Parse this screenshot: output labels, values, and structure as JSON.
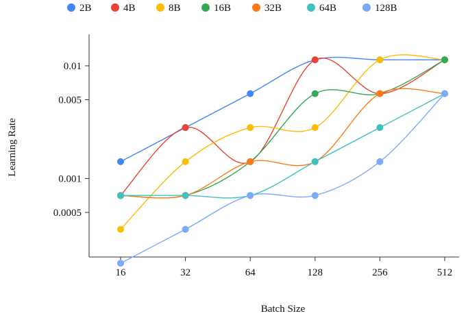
{
  "chart_data": {
    "type": "line",
    "xlabel": "Batch Size",
    "ylabel": "Learning Rate",
    "x_categories": [
      "16",
      "32",
      "64",
      "128",
      "256",
      "512"
    ],
    "y_scale": "log2",
    "yticks": [
      {
        "value": 0.01,
        "label": "0.01"
      },
      {
        "value": 0.005,
        "label": "0.005"
      },
      {
        "value": 0.001,
        "label": "0.001"
      },
      {
        "value": 0.0005,
        "label": "0.0005"
      }
    ],
    "legend_position": "top",
    "series": [
      {
        "name": "2B",
        "color": "#4285F4",
        "values": [
          0.00141,
          0.00283,
          0.00566,
          0.0113,
          0.0113,
          0.0113
        ]
      },
      {
        "name": "4B",
        "color": "#EA4335",
        "values": [
          0.000707,
          0.00283,
          0.00141,
          0.0113,
          0.00566,
          0.0113
        ]
      },
      {
        "name": "8B",
        "color": "#FBBC04",
        "values": [
          0.000354,
          0.00141,
          0.00283,
          0.00283,
          0.0113,
          0.0113
        ]
      },
      {
        "name": "16B",
        "color": "#34A853",
        "values": [
          0.000707,
          0.000707,
          0.00141,
          0.00566,
          0.00566,
          0.0113
        ]
      },
      {
        "name": "32B",
        "color": "#FA7B17",
        "values": [
          0.000707,
          0.000707,
          0.00141,
          0.00141,
          0.00566,
          0.00566
        ]
      },
      {
        "name": "64B",
        "color": "#3EC1BF",
        "values": [
          0.000707,
          0.000707,
          0.000707,
          0.00141,
          0.00283,
          0.00566
        ]
      },
      {
        "name": "128B",
        "color": "#7BAAF7",
        "values": [
          0.000177,
          0.000354,
          0.000707,
          0.000707,
          0.00141,
          0.00566
        ]
      }
    ]
  }
}
